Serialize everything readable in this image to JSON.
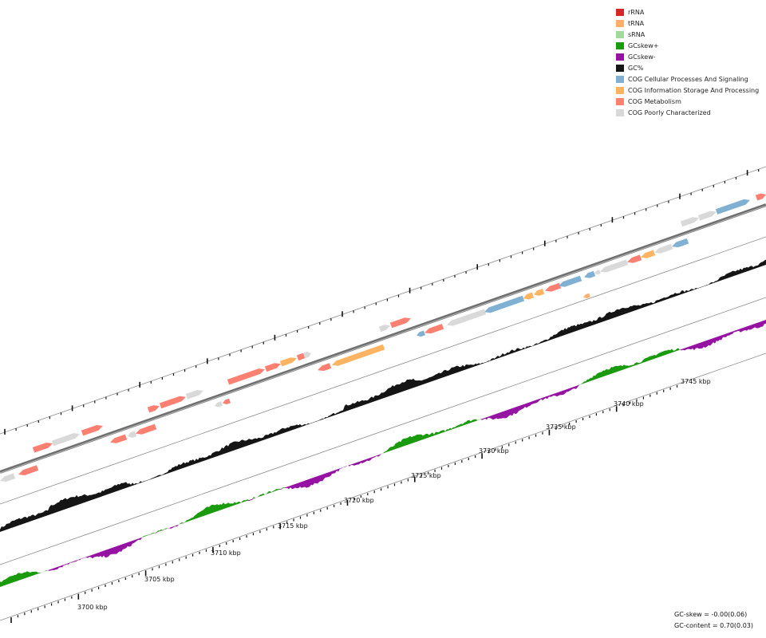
{
  "legend": [
    {
      "label": "rRNA",
      "color": "#d62728"
    },
    {
      "label": "tRNA",
      "color": "#fdae6b"
    },
    {
      "label": "sRNA",
      "color": "#a1d99b"
    },
    {
      "label": "GCskew+",
      "color": "#1a9a0d"
    },
    {
      "label": "GCskew-",
      "color": "#9512a3"
    },
    {
      "label": "GC%",
      "color": "#151515"
    },
    {
      "label": "COG Cellular Processes And Signaling",
      "color": "#80b1d3"
    },
    {
      "label": "COG Information Storage And Processing",
      "color": "#fdb462"
    },
    {
      "label": "COG Metabolism",
      "color": "#fb8072"
    },
    {
      "label": "COG Poorly Characterized",
      "color": "#d9d9d9"
    }
  ],
  "scale": {
    "tick_labels": [
      "3700 kbp",
      "3705 kbp",
      "3710 kbp",
      "3715 kbp",
      "3720 kbp",
      "3725 kbp",
      "3730 kbp",
      "3735 kbp",
      "3740 kbp",
      "3745 kbp"
    ]
  },
  "stats": {
    "gc_skew": "GC-skew = -0.00(0.06)",
    "gc_content": "GC-content = 0.70(0.03)"
  }
}
